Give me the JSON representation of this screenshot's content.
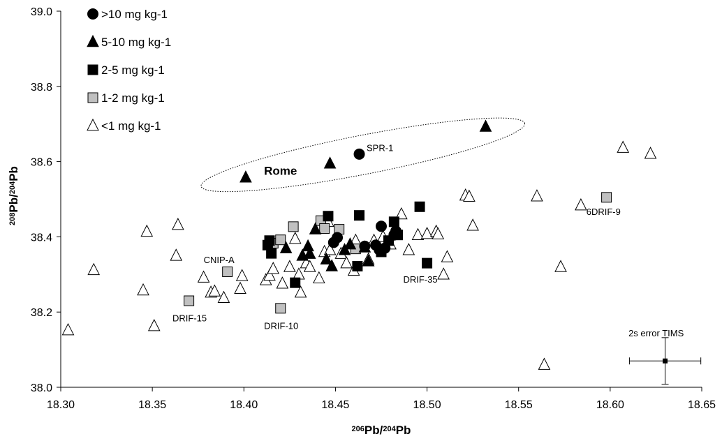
{
  "chart_data": {
    "type": "scatter",
    "xlabel": {
      "pre": "",
      "sup1": "206",
      "mid1": "Pb/",
      "sup2": "204",
      "mid2": "Pb"
    },
    "ylabel": {
      "sup1": "208",
      "mid1": "Pb/",
      "sup2": "204",
      "mid2": "Pb"
    },
    "xlim": [
      18.3,
      18.65
    ],
    "ylim": [
      38.0,
      39.0
    ],
    "xticks": [
      "18.30",
      "18.35",
      "18.40",
      "18.45",
      "18.50",
      "18.55",
      "18.60",
      "18.65"
    ],
    "yticks": [
      "38.0",
      "38.2",
      "38.4",
      "38.6",
      "38.8",
      "39.0"
    ],
    "grid": false,
    "legend_position": "top-left",
    "series": [
      {
        "name": ">10 mg kg-1",
        "marker": "circle",
        "fill": "#000000",
        "points": [
          [
            18.463,
            38.62
          ],
          [
            18.475,
            38.428
          ],
          [
            18.483,
            38.415
          ],
          [
            18.482,
            38.405
          ],
          [
            18.466,
            38.375
          ],
          [
            18.472,
            38.378
          ],
          [
            18.449,
            38.385
          ],
          [
            18.451,
            38.398
          ],
          [
            18.474,
            38.365
          ],
          [
            18.477,
            38.37
          ]
        ]
      },
      {
        "name": "5-10 mg kg-1",
        "marker": "triangle",
        "fill": "#000000",
        "points": [
          [
            18.401,
            38.558
          ],
          [
            18.447,
            38.595
          ],
          [
            18.532,
            38.693
          ],
          [
            18.423,
            38.37
          ],
          [
            18.435,
            38.375
          ],
          [
            18.439,
            38.42
          ],
          [
            18.448,
            38.322
          ],
          [
            18.455,
            38.365
          ],
          [
            18.468,
            38.335
          ],
          [
            18.432,
            38.35
          ],
          [
            18.436,
            38.355
          ],
          [
            18.445,
            38.34
          ],
          [
            18.458,
            38.38
          ],
          [
            18.466,
            38.372
          ]
        ]
      },
      {
        "name": "2-5 mg kg-1",
        "marker": "square",
        "fill": "#000000",
        "points": [
          [
            18.413,
            38.378
          ],
          [
            18.414,
            38.39
          ],
          [
            18.415,
            38.356
          ],
          [
            18.428,
            38.278
          ],
          [
            18.446,
            38.455
          ],
          [
            18.463,
            38.457
          ],
          [
            18.462,
            38.322
          ],
          [
            18.475,
            38.36
          ],
          [
            18.479,
            38.39
          ],
          [
            18.482,
            38.44
          ],
          [
            18.496,
            38.48
          ],
          [
            18.5,
            38.33
          ],
          [
            18.484,
            38.405
          ]
        ]
      },
      {
        "name": "1-2 mg kg-1",
        "marker": "square",
        "fill": "#c0c0c0",
        "points": [
          [
            18.37,
            38.23
          ],
          [
            18.391,
            38.307
          ],
          [
            18.42,
            38.21
          ],
          [
            18.416,
            38.383
          ],
          [
            18.42,
            38.392
          ],
          [
            18.427,
            38.427
          ],
          [
            18.442,
            38.443
          ],
          [
            18.444,
            38.422
          ],
          [
            18.452,
            38.42
          ],
          [
            18.461,
            38.368
          ],
          [
            18.598,
            38.505
          ]
        ]
      },
      {
        "name": "<1 mg kg-1",
        "marker": "triangle",
        "fill": "#ffffff",
        "points": [
          [
            18.304,
            38.152
          ],
          [
            18.318,
            38.312
          ],
          [
            18.345,
            38.258
          ],
          [
            18.347,
            38.414
          ],
          [
            18.351,
            38.163
          ],
          [
            18.363,
            38.35
          ],
          [
            18.364,
            38.432
          ],
          [
            18.378,
            38.292
          ],
          [
            18.382,
            38.252
          ],
          [
            18.384,
            38.255
          ],
          [
            18.389,
            38.238
          ],
          [
            18.398,
            38.262
          ],
          [
            18.399,
            38.296
          ],
          [
            18.412,
            38.285
          ],
          [
            18.414,
            38.297
          ],
          [
            18.416,
            38.315
          ],
          [
            18.421,
            38.276
          ],
          [
            18.425,
            38.32
          ],
          [
            18.428,
            38.395
          ],
          [
            18.43,
            38.3
          ],
          [
            18.431,
            38.252
          ],
          [
            18.434,
            38.33
          ],
          [
            18.436,
            38.32
          ],
          [
            18.441,
            38.29
          ],
          [
            18.444,
            38.36
          ],
          [
            18.446,
            38.44
          ],
          [
            18.447,
            38.365
          ],
          [
            18.453,
            38.355
          ],
          [
            18.456,
            38.33
          ],
          [
            18.46,
            38.31
          ],
          [
            18.461,
            38.39
          ],
          [
            18.468,
            38.34
          ],
          [
            18.471,
            38.39
          ],
          [
            18.476,
            38.4
          ],
          [
            18.48,
            38.38
          ],
          [
            18.486,
            38.46
          ],
          [
            18.49,
            38.365
          ],
          [
            18.495,
            38.405
          ],
          [
            18.5,
            38.408
          ],
          [
            18.505,
            38.414
          ],
          [
            18.506,
            38.407
          ],
          [
            18.511,
            38.346
          ],
          [
            18.509,
            38.3
          ],
          [
            18.521,
            38.51
          ],
          [
            18.523,
            38.507
          ],
          [
            18.525,
            38.43
          ],
          [
            18.56,
            38.508
          ],
          [
            18.564,
            38.06
          ],
          [
            18.573,
            38.32
          ],
          [
            18.584,
            38.484
          ],
          [
            18.607,
            38.637
          ],
          [
            18.622,
            38.621
          ]
        ]
      }
    ],
    "annotations": [
      {
        "text": "SPR-1",
        "x": 18.467,
        "y": 38.628,
        "bold": false
      },
      {
        "text": "Rome",
        "x": 18.411,
        "y": 38.565,
        "bold": true
      },
      {
        "text": "CNIP-A",
        "x": 18.378,
        "y": 38.33,
        "bold": false
      },
      {
        "text": "DRIF-15",
        "x": 18.361,
        "y": 38.175,
        "bold": false
      },
      {
        "text": "DRIF-10",
        "x": 18.411,
        "y": 38.155,
        "bold": false
      },
      {
        "text": "DRIF-35",
        "x": 18.487,
        "y": 38.278,
        "bold": false
      },
      {
        "text": "6DRIF-9",
        "x": 18.587,
        "y": 38.458,
        "bold": false
      },
      {
        "text": "2s error TIMS",
        "x": 18.61,
        "y": 38.135,
        "bold": false
      }
    ],
    "rome_group": {
      "cx": 18.465,
      "cy": 38.618,
      "rx": 0.09,
      "ry_px": 28
    },
    "error_bar": {
      "x": 18.63,
      "y": 38.07,
      "xerr": 0.0195,
      "yerr": 0.062
    }
  }
}
